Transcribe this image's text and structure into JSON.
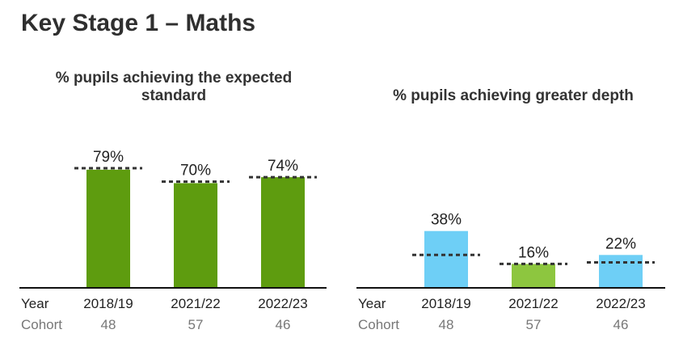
{
  "page": {
    "title": "Key Stage 1 – Maths"
  },
  "row_labels": {
    "year": "Year",
    "cohort": "Cohort"
  },
  "colors": {
    "expected_bar": "#5e9c0f",
    "depth_bar_blue": "#6ecff6",
    "depth_bar_green": "#8dc63f",
    "benchmark_line": "#333333",
    "axis": "#111111"
  },
  "chart_data": [
    {
      "type": "bar",
      "title": "% pupils achieving the expected standard",
      "categories": [
        "2018/19",
        "2021/22",
        "2022/23"
      ],
      "values": [
        79,
        70,
        74
      ],
      "value_labels": [
        "79%",
        "70%",
        "74%"
      ],
      "cohort": [
        "48",
        "57",
        "46"
      ],
      "benchmarks": [
        80,
        71,
        74
      ],
      "bar_colors": [
        "#5e9c0f",
        "#5e9c0f",
        "#5e9c0f"
      ],
      "ylim": [
        0,
        100
      ],
      "grid": false,
      "legend": "none"
    },
    {
      "type": "bar",
      "title": "% pupils achieving greater depth",
      "categories": [
        "2018/19",
        "2021/22",
        "2022/23"
      ],
      "values": [
        38,
        16,
        22
      ],
      "value_labels": [
        "38%",
        "16%",
        "22%"
      ],
      "cohort": [
        "48",
        "57",
        "46"
      ],
      "benchmarks": [
        22,
        16,
        17
      ],
      "bar_colors": [
        "#6ecff6",
        "#8dc63f",
        "#6ecff6"
      ],
      "ylim": [
        0,
        100
      ],
      "grid": false,
      "legend": "none"
    }
  ]
}
